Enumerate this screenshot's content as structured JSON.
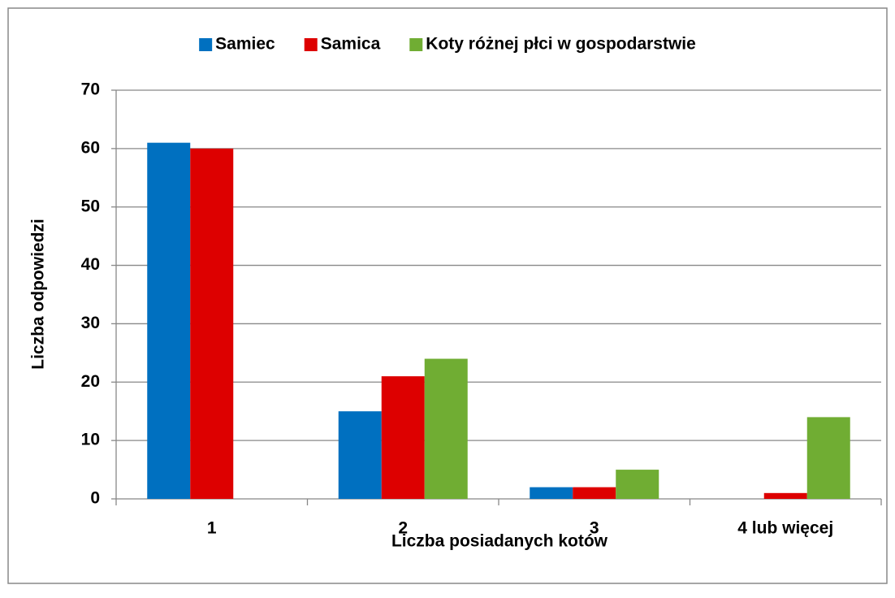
{
  "chart_data": {
    "type": "bar",
    "categories": [
      "1",
      "2",
      "3",
      "4 lub więcej"
    ],
    "series": [
      {
        "name": "Samiec",
        "color": "#0070c0",
        "values": [
          61,
          15,
          2,
          0
        ]
      },
      {
        "name": "Samica",
        "color": "#dd0000",
        "values": [
          60,
          21,
          2,
          1
        ]
      },
      {
        "name": "Koty różnej płci w gospodarstwie",
        "color": "#70ad33",
        "values": [
          0,
          24,
          5,
          14
        ]
      }
    ],
    "x_label": "Liczba posiadanych kotów",
    "y_label": "Liczba odpowiedzi",
    "ylim": [
      0,
      70
    ],
    "yticks": [
      0,
      10,
      20,
      30,
      40,
      50,
      60,
      70
    ],
    "grid": true,
    "legend": "top"
  }
}
